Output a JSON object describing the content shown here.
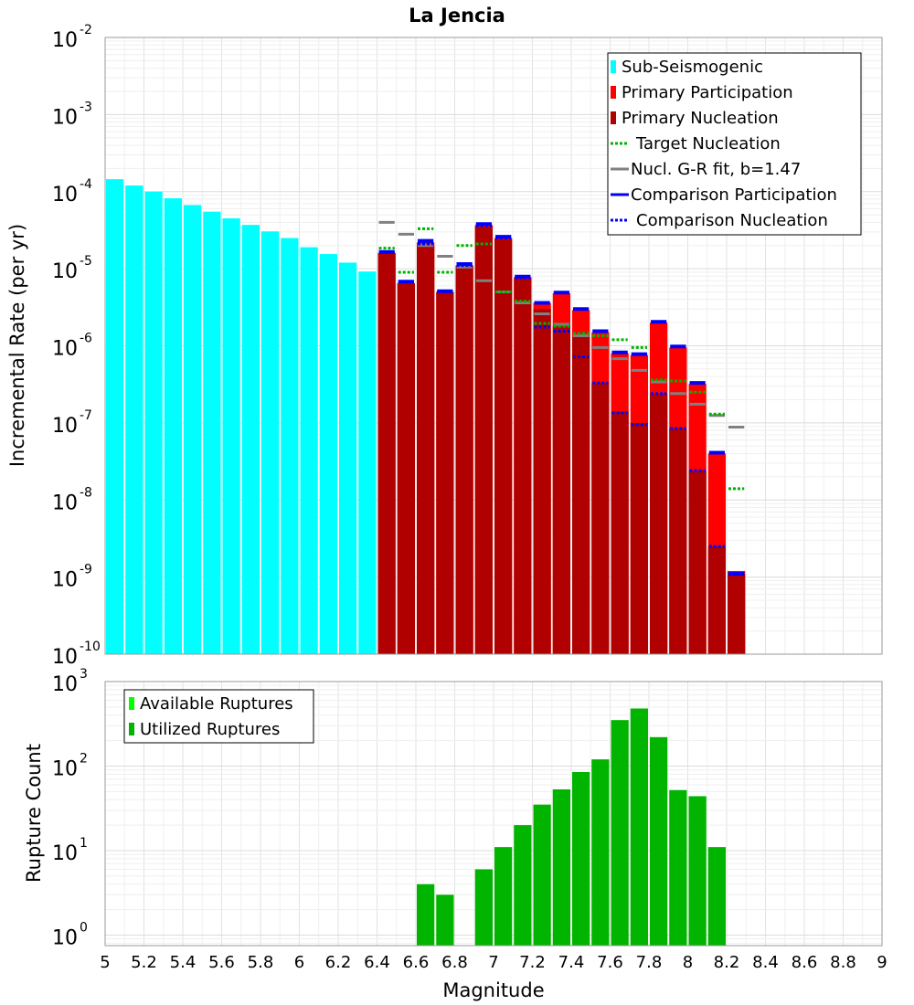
{
  "chart_data": [
    {
      "type": "bar",
      "title": "La Jencia",
      "ylabel": "Incremental Rate (per yr)",
      "xlabel": "",
      "y_scale": "log",
      "ylim": [
        1e-10,
        0.01
      ],
      "xlim": [
        5,
        9
      ],
      "grid": true,
      "legend_position": "top-right",
      "y_ticks": [
        {
          "base": "10",
          "exp": "-10",
          "v": 1e-10
        },
        {
          "base": "10",
          "exp": "-9",
          "v": 1e-09
        },
        {
          "base": "10",
          "exp": "-8",
          "v": 1e-08
        },
        {
          "base": "10",
          "exp": "-7",
          "v": 1e-07
        },
        {
          "base": "10",
          "exp": "-6",
          "v": 1e-06
        },
        {
          "base": "10",
          "exp": "-5",
          "v": 1e-05
        },
        {
          "base": "10",
          "exp": "-4",
          "v": 0.0001
        },
        {
          "base": "10",
          "exp": "-3",
          "v": 0.001
        },
        {
          "base": "10",
          "exp": "-2",
          "v": 0.01
        }
      ],
      "legend": [
        {
          "label": "Sub-Seismogenic",
          "style": "bar",
          "color": "#00ffff"
        },
        {
          "label": "Primary Participation",
          "style": "bar",
          "color": "#ff0000"
        },
        {
          "label": "Primary Nucleation",
          "style": "bar",
          "color": "#b00000"
        },
        {
          "label": "Target Nucleation",
          "style": "dotted",
          "color": "#00b400"
        },
        {
          "label": "Nucl. G-R fit, b=1.47",
          "style": "solid",
          "color": "#808080"
        },
        {
          "label": "Comparison Participation",
          "style": "solid",
          "color": "#0000ff"
        },
        {
          "label": "Comparison Nucleation",
          "style": "dotted",
          "color": "#0000ff"
        }
      ],
      "sub_seismogenic": {
        "x": [
          5.05,
          5.15,
          5.25,
          5.35,
          5.45,
          5.55,
          5.65,
          5.75,
          5.85,
          5.95,
          6.05,
          6.15,
          6.25,
          6.35
        ],
        "values": [
          0.000145,
          0.00012,
          0.0001,
          8.2e-05,
          6.7e-05,
          5.5e-05,
          4.5e-05,
          3.7e-05,
          3.05e-05,
          2.5e-05,
          1.9e-05,
          1.55e-05,
          1.2e-05,
          9.2e-06
        ]
      },
      "primary_participation": {
        "x": [
          6.45,
          6.55,
          6.65,
          6.75,
          6.85,
          6.95,
          7.05,
          7.15,
          7.25,
          7.35,
          7.45,
          7.55,
          7.65,
          7.75,
          7.85,
          7.95,
          8.05,
          8.15,
          8.25
        ],
        "values": [
          1.6e-05,
          6.5e-06,
          2.2e-05,
          5e-06,
          1.1e-05,
          3.7e-05,
          2.5e-05,
          7.8e-06,
          3.6e-06,
          4.8e-06,
          2.9e-06,
          1.5e-06,
          8e-07,
          7.6e-07,
          2e-06,
          9.5e-07,
          3.2e-07,
          4e-08,
          1.2e-09
        ]
      },
      "primary_nucleation": {
        "x": [
          6.45,
          6.55,
          6.65,
          6.75,
          6.85,
          6.95,
          7.05,
          7.15,
          7.25,
          7.35,
          7.45,
          7.55,
          7.65,
          7.75,
          7.85,
          7.95,
          8.05,
          8.15,
          8.25
        ],
        "values": [
          1.6e-05,
          6.5e-06,
          2e-05,
          5e-06,
          1.1e-05,
          3.5e-05,
          2.4e-05,
          7.4e-06,
          3e-06,
          1.8e-06,
          1.3e-06,
          3.3e-07,
          1.4e-07,
          1e-07,
          2.4e-07,
          8.5e-08,
          2.4e-08,
          2.5e-09,
          1.1e-09
        ]
      },
      "target_nucleation": {
        "x": [
          6.45,
          6.55,
          6.65,
          6.75,
          6.85,
          6.95,
          7.05,
          7.15,
          7.25,
          7.35,
          7.45,
          7.55,
          7.65,
          7.75,
          7.85,
          7.95,
          8.05,
          8.15,
          8.25
        ],
        "values": [
          1.85e-05,
          9e-06,
          3.3e-05,
          9e-06,
          2e-05,
          2.1e-05,
          5e-06,
          3.8e-06,
          1.95e-06,
          1.8e-06,
          1.45e-06,
          1.35e-06,
          1.2e-06,
          9.5e-07,
          3.6e-07,
          3.5e-07,
          2.5e-07,
          1.3e-07,
          1.4e-08
        ]
      },
      "gr_fit": {
        "x": [
          6.45,
          6.55,
          6.65,
          6.75,
          6.85,
          6.95,
          7.05,
          7.15,
          7.25,
          7.35,
          7.45,
          7.55,
          7.65,
          7.75,
          7.85,
          7.95,
          8.05,
          8.15,
          8.25
        ],
        "values": [
          4e-05,
          2.8e-05,
          2e-05,
          1.45e-05,
          1.05e-05,
          7e-06,
          5e-06,
          3.6e-06,
          2.6e-06,
          1.9e-06,
          1.35e-06,
          9.5e-07,
          6.8e-07,
          4.8e-07,
          3.4e-07,
          2.4e-07,
          1.75e-07,
          1.25e-07,
          8.8e-08
        ]
      },
      "comparison_participation": {
        "x": [
          6.45,
          6.55,
          6.65,
          6.75,
          6.85,
          6.95,
          7.05,
          7.15,
          7.25,
          7.35,
          7.45,
          7.55,
          7.65,
          7.75,
          7.85,
          7.95,
          8.05,
          8.15,
          8.25
        ],
        "values": [
          1.65e-05,
          6.8e-06,
          2.3e-05,
          5.1e-06,
          1.15e-05,
          3.8e-05,
          2.6e-05,
          7.9e-06,
          3.6e-06,
          4.9e-06,
          3e-06,
          1.55e-06,
          8.2e-07,
          7.8e-07,
          2.05e-06,
          9.8e-07,
          3.3e-07,
          4.1e-08,
          1.1e-09
        ]
      },
      "comparison_nucleation": {
        "x": [
          6.45,
          6.55,
          6.65,
          6.75,
          6.85,
          6.95,
          7.05,
          7.15,
          7.25,
          7.35,
          7.45,
          7.55,
          7.65,
          7.75,
          7.85,
          7.95,
          8.05,
          8.15,
          8.25
        ],
        "values": [
          1.65e-05,
          6.8e-06,
          2.1e-05,
          5.1e-06,
          1.1e-05,
          3.6e-05,
          2.5e-05,
          7.6e-06,
          1.75e-06,
          1.55e-06,
          7.2e-07,
          3.3e-07,
          1.35e-07,
          9.5e-08,
          2.4e-07,
          8.5e-08,
          2.4e-08,
          2.5e-09,
          1.1e-09
        ]
      }
    },
    {
      "type": "bar",
      "title": "",
      "ylabel": "Rupture Count",
      "xlabel": "Magnitude",
      "y_scale": "log",
      "ylim": [
        0.75,
        1000
      ],
      "xlim": [
        5,
        9
      ],
      "grid": true,
      "legend_position": "top-left",
      "x_ticks": [
        "5",
        "5.2",
        "5.4",
        "5.6",
        "5.8",
        "6",
        "6.2",
        "6.4",
        "6.6",
        "6.8",
        "7",
        "7.2",
        "7.4",
        "7.6",
        "7.8",
        "8",
        "8.2",
        "8.4",
        "8.6",
        "8.8",
        "9"
      ],
      "y_ticks": [
        {
          "base": "10",
          "exp": "0",
          "v": 1
        },
        {
          "base": "10",
          "exp": "1",
          "v": 10
        },
        {
          "base": "10",
          "exp": "2",
          "v": 100
        },
        {
          "base": "10",
          "exp": "3",
          "v": 1000
        }
      ],
      "legend": [
        {
          "label": "Available Ruptures",
          "style": "bar",
          "color": "#00ff00"
        },
        {
          "label": "Utilized Ruptures",
          "style": "bar",
          "color": "#00b400"
        }
      ],
      "utilized_ruptures": {
        "x": [
          6.65,
          6.75,
          6.95,
          7.05,
          7.15,
          7.25,
          7.35,
          7.45,
          7.55,
          7.65,
          7.75,
          7.85,
          7.95,
          8.05,
          8.15
        ],
        "values": [
          4,
          3,
          6,
          11,
          20,
          35,
          53,
          85,
          120,
          350,
          480,
          220,
          52,
          44,
          11
        ]
      }
    }
  ]
}
